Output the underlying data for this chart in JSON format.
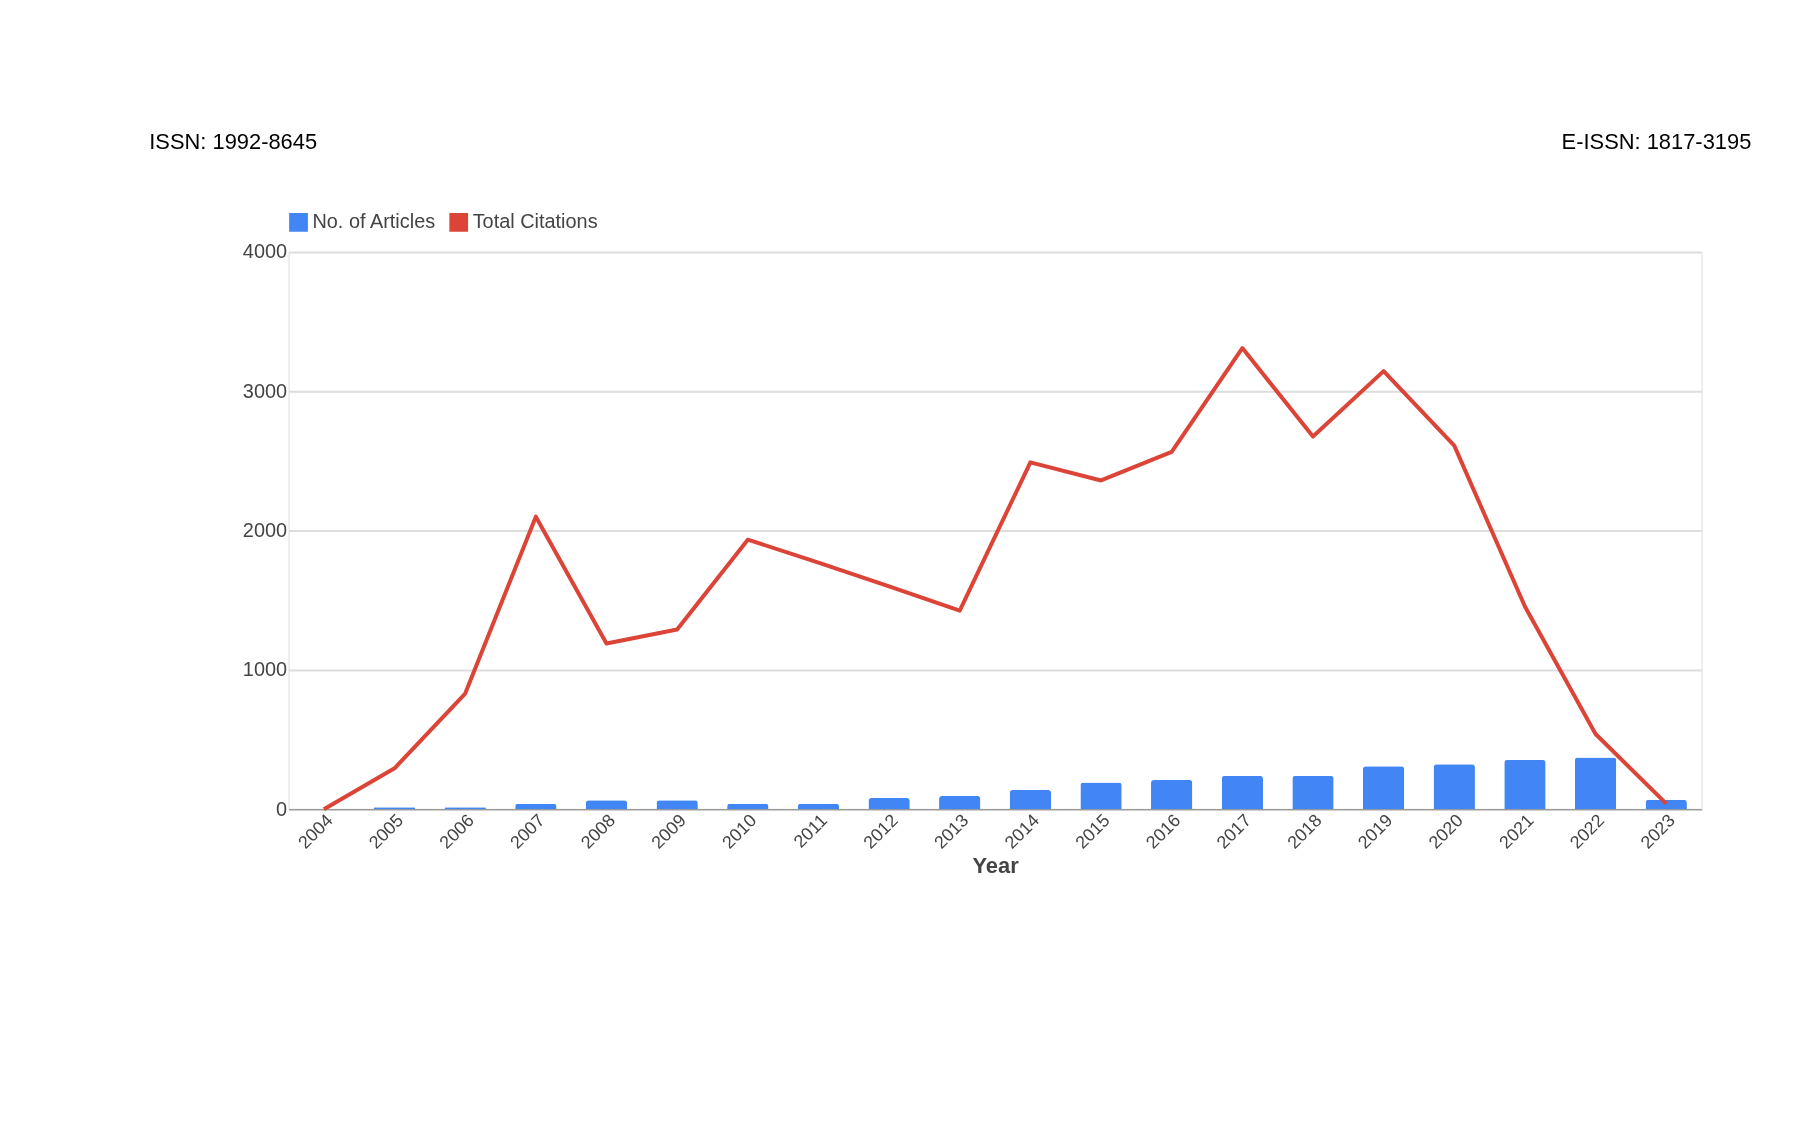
{
  "chart_data": {
    "type": "bar",
    "xlabel": "Year",
    "categories": [
      "2004",
      "2005",
      "2006",
      "2007",
      "2008",
      "2009",
      "2010",
      "2011",
      "2012",
      "2013",
      "2014",
      "2015",
      "2016",
      "2017",
      "2018",
      "2019",
      "2020",
      "2021",
      "2022",
      "2023"
    ],
    "series": [
      {
        "name": "No. of Articles",
        "color": "#4285f4",
        "values": [
          0,
          15,
          15,
          40,
          65,
          65,
          40,
          40,
          80,
          95,
          138,
          191,
          209,
          240,
          240,
          308,
          323,
          354,
          372,
          68
        ]
      },
      {
        "name": "Total Citations",
        "type": "line",
        "color": "#db4437",
        "values": [
          0,
          294,
          830,
          2100,
          1190,
          1290,
          1935,
          1770,
          1600,
          1425,
          2490,
          2360,
          2565,
          3310,
          2675,
          3145,
          2610,
          1455,
          540,
          40
        ]
      }
    ],
    "ylim": [
      0,
      4000
    ],
    "yticks": [
      0,
      1000,
      2000,
      3000,
      4000
    ],
    "grid": "y",
    "legend": "top",
    "annotations": [
      "ISSN: 1992-8645",
      "E-ISSN: 1817-3195"
    ]
  }
}
